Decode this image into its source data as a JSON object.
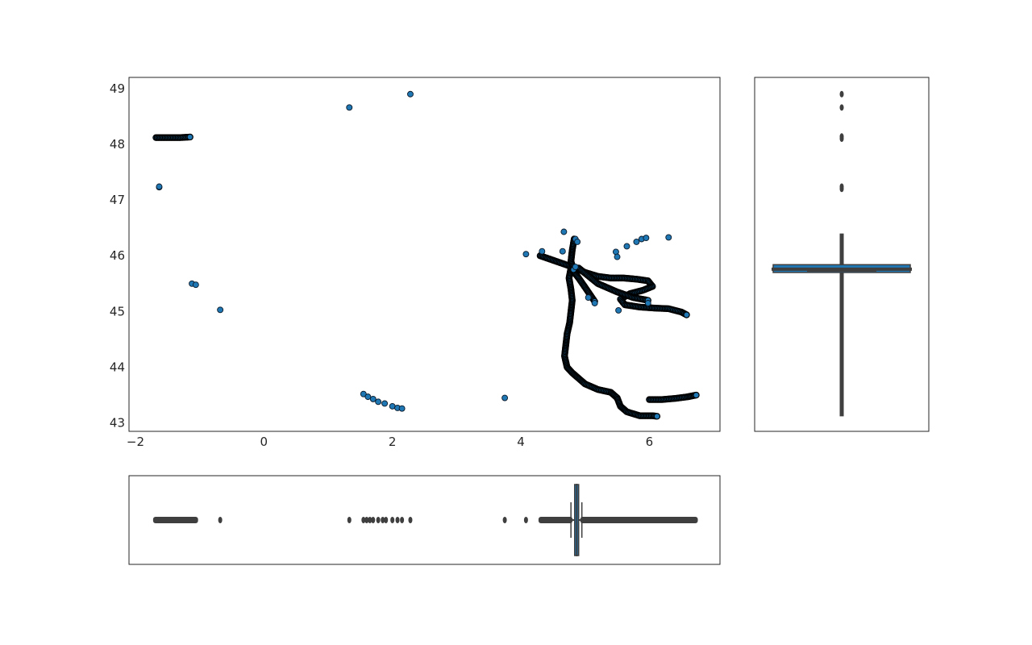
{
  "chart_data": [
    {
      "panel": "joint",
      "type": "scatter",
      "title": "",
      "xlabel": "",
      "ylabel": "",
      "xlim": [
        -2.1,
        7.1
      ],
      "ylim": [
        42.85,
        49.2
      ],
      "xticks": [
        -2,
        0,
        2,
        4,
        6
      ],
      "xtick_labels": [
        "−2",
        "0",
        "2",
        "4",
        "6"
      ],
      "yticks": [
        43,
        44,
        45,
        46,
        47,
        48,
        49
      ],
      "ytick_labels": [
        "43",
        "44",
        "45",
        "46",
        "47",
        "48",
        "49"
      ],
      "grid": false,
      "legend": "none",
      "marker_color": "#1f77b4",
      "marker_edge_color": "#000000",
      "tracks": [
        [
          [
            -1.68,
            48.12
          ],
          [
            -1.5,
            48.12
          ],
          [
            -1.3,
            48.12
          ],
          [
            -1.15,
            48.13
          ]
        ],
        [
          [
            4.3,
            46.0
          ],
          [
            4.5,
            45.92
          ],
          [
            4.7,
            45.84
          ],
          [
            4.85,
            45.78
          ],
          [
            5.0,
            45.7
          ],
          [
            5.2,
            45.63
          ],
          [
            5.4,
            45.6
          ],
          [
            5.6,
            45.6
          ],
          [
            5.8,
            45.58
          ],
          [
            5.98,
            45.55
          ],
          [
            6.05,
            45.45
          ],
          [
            5.9,
            45.38
          ],
          [
            5.7,
            45.32
          ],
          [
            5.55,
            45.22
          ],
          [
            5.62,
            45.12
          ],
          [
            5.85,
            45.08
          ],
          [
            6.1,
            45.06
          ],
          [
            6.3,
            45.05
          ],
          [
            6.5,
            44.99
          ],
          [
            6.58,
            44.94
          ]
        ],
        [
          [
            4.78,
            45.78
          ],
          [
            4.75,
            45.6
          ],
          [
            4.78,
            45.4
          ],
          [
            4.8,
            45.2
          ],
          [
            4.78,
            45.0
          ],
          [
            4.76,
            44.8
          ],
          [
            4.72,
            44.6
          ],
          [
            4.7,
            44.4
          ],
          [
            4.68,
            44.2
          ],
          [
            4.72,
            44.0
          ],
          [
            4.8,
            43.9
          ],
          [
            4.9,
            43.8
          ],
          [
            5.0,
            43.7
          ],
          [
            5.2,
            43.6
          ],
          [
            5.4,
            43.55
          ],
          [
            5.5,
            43.45
          ],
          [
            5.55,
            43.3
          ],
          [
            5.65,
            43.2
          ],
          [
            5.85,
            43.13
          ],
          [
            6.05,
            43.13
          ],
          [
            6.12,
            43.12
          ]
        ],
        [
          [
            6.0,
            43.42
          ],
          [
            6.2,
            43.42
          ],
          [
            6.4,
            43.44
          ],
          [
            6.6,
            43.47
          ],
          [
            6.73,
            43.5
          ]
        ],
        [
          [
            4.78,
            45.78
          ],
          [
            4.9,
            45.6
          ],
          [
            5.02,
            45.4
          ],
          [
            5.15,
            45.18
          ]
        ],
        [
          [
            4.83,
            46.3
          ],
          [
            4.8,
            46.1
          ],
          [
            4.78,
            45.9
          ],
          [
            4.82,
            45.75
          ]
        ],
        [
          [
            4.9,
            45.78
          ],
          [
            5.2,
            45.5
          ],
          [
            5.5,
            45.35
          ],
          [
            5.75,
            45.25
          ],
          [
            5.98,
            45.2
          ]
        ]
      ],
      "points": [
        [
          -1.63,
          47.23
        ],
        [
          -1.63,
          47.24
        ],
        [
          -1.12,
          45.5
        ],
        [
          -1.06,
          45.48
        ],
        [
          -0.68,
          45.03
        ],
        [
          1.33,
          48.66
        ],
        [
          2.28,
          48.9
        ],
        [
          1.55,
          43.52
        ],
        [
          1.62,
          43.47
        ],
        [
          1.7,
          43.43
        ],
        [
          1.78,
          43.38
        ],
        [
          1.88,
          43.35
        ],
        [
          2.0,
          43.3
        ],
        [
          2.08,
          43.27
        ],
        [
          2.15,
          43.26
        ],
        [
          3.75,
          43.45
        ],
        [
          4.08,
          46.03
        ],
        [
          4.33,
          46.08
        ],
        [
          4.67,
          46.43
        ],
        [
          4.65,
          46.08
        ],
        [
          4.85,
          46.3
        ],
        [
          4.88,
          46.25
        ],
        [
          5.48,
          46.07
        ],
        [
          5.5,
          45.98
        ],
        [
          5.65,
          46.17
        ],
        [
          5.8,
          46.25
        ],
        [
          5.88,
          46.3
        ],
        [
          5.95,
          46.32
        ],
        [
          6.3,
          46.33
        ],
        [
          5.52,
          45.02
        ],
        [
          5.98,
          45.15
        ],
        [
          5.05,
          45.25
        ],
        [
          5.15,
          45.15
        ],
        [
          4.85,
          45.8
        ]
      ]
    },
    {
      "panel": "marginal-y",
      "type": "box",
      "orientation": "vertical",
      "median": 45.76,
      "q1": 45.7,
      "q3": 45.84,
      "whisker_low": 43.12,
      "whisker_high": 46.4,
      "box_color": "#1f77b4",
      "line_color": "#3f3f3f",
      "outliers": [
        48.9,
        48.66,
        48.14,
        48.1,
        47.24,
        47.2
      ]
    },
    {
      "panel": "marginal-x",
      "type": "box",
      "orientation": "horizontal",
      "median": 4.87,
      "q1": 4.85,
      "q3": 4.9,
      "whisker_low": 4.78,
      "whisker_high": 4.95,
      "box_color": "#1f77b4",
      "line_color": "#3f3f3f",
      "outlier_bands": [
        [
          -1.7,
          -1.05
        ],
        [
          4.3,
          4.78
        ],
        [
          4.95,
          6.73
        ]
      ],
      "outliers": [
        -0.68,
        1.33,
        1.55,
        1.6,
        1.65,
        1.7,
        1.78,
        1.85,
        1.9,
        2.0,
        2.08,
        2.15,
        2.28,
        3.75,
        4.08
      ]
    }
  ]
}
